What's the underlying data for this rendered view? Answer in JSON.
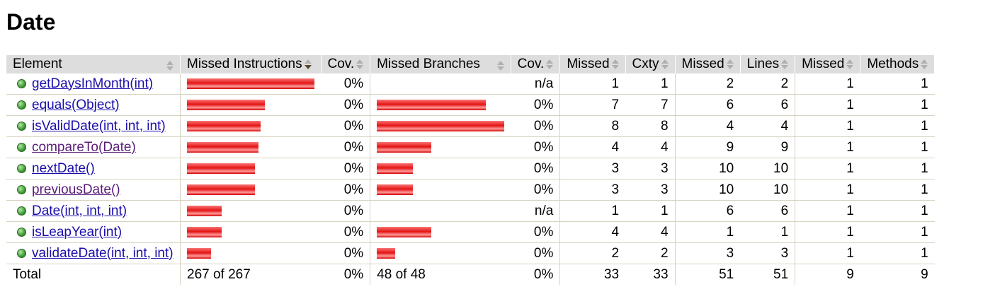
{
  "page_title": "Date",
  "columns": [
    "Element",
    "Missed Instructions",
    "Cov.",
    "Missed Branches",
    "Cov.",
    "Missed",
    "Cxty",
    "Missed",
    "Lines",
    "Missed",
    "Methods"
  ],
  "rows": [
    {
      "name": "getDaysInMonth(int)",
      "instr_fraction": 1.0,
      "instr_cov": "0%",
      "branch_fraction": 0,
      "branch_cov": "n/a",
      "missed_cxty": "1",
      "cxty": "1",
      "missed_lines": "2",
      "lines": "2",
      "missed_methods": "1",
      "methods": "1",
      "visited": false
    },
    {
      "name": "equals(Object)",
      "instr_fraction": 0.611,
      "instr_cov": "0%",
      "branch_fraction": 0.857,
      "branch_cov": "0%",
      "missed_cxty": "7",
      "cxty": "7",
      "missed_lines": "6",
      "lines": "6",
      "missed_methods": "1",
      "methods": "1",
      "visited": false
    },
    {
      "name": "isValidDate(int, int, int)",
      "instr_fraction": 0.578,
      "instr_cov": "0%",
      "branch_fraction": 1.0,
      "branch_cov": "0%",
      "missed_cxty": "8",
      "cxty": "8",
      "missed_lines": "4",
      "lines": "4",
      "missed_methods": "1",
      "methods": "1",
      "visited": false
    },
    {
      "name": "compareTo(Date)",
      "instr_fraction": 0.561,
      "instr_cov": "0%",
      "branch_fraction": 0.429,
      "branch_cov": "0%",
      "missed_cxty": "4",
      "cxty": "4",
      "missed_lines": "9",
      "lines": "9",
      "missed_methods": "1",
      "methods": "1",
      "visited": true
    },
    {
      "name": "nextDate()",
      "instr_fraction": 0.533,
      "instr_cov": "0%",
      "branch_fraction": 0.286,
      "branch_cov": "0%",
      "missed_cxty": "3",
      "cxty": "3",
      "missed_lines": "10",
      "lines": "10",
      "missed_methods": "1",
      "methods": "1",
      "visited": false
    },
    {
      "name": "previousDate()",
      "instr_fraction": 0.533,
      "instr_cov": "0%",
      "branch_fraction": 0.286,
      "branch_cov": "0%",
      "missed_cxty": "3",
      "cxty": "3",
      "missed_lines": "10",
      "lines": "10",
      "missed_methods": "1",
      "methods": "1",
      "visited": true
    },
    {
      "name": "Date(int, int, int)",
      "instr_fraction": 0.272,
      "instr_cov": "0%",
      "branch_fraction": 0,
      "branch_cov": "n/a",
      "missed_cxty": "1",
      "cxty": "1",
      "missed_lines": "6",
      "lines": "6",
      "missed_methods": "1",
      "methods": "1",
      "visited": false
    },
    {
      "name": "isLeapYear(int)",
      "instr_fraction": 0.272,
      "instr_cov": "0%",
      "branch_fraction": 0.429,
      "branch_cov": "0%",
      "missed_cxty": "4",
      "cxty": "4",
      "missed_lines": "1",
      "lines": "1",
      "missed_methods": "1",
      "methods": "1",
      "visited": false
    },
    {
      "name": "validateDate(int, int, int)",
      "instr_fraction": 0.189,
      "instr_cov": "0%",
      "branch_fraction": 0.143,
      "branch_cov": "0%",
      "missed_cxty": "2",
      "cxty": "2",
      "missed_lines": "3",
      "lines": "3",
      "missed_methods": "1",
      "methods": "1",
      "visited": false
    }
  ],
  "total": {
    "label": "Total",
    "instructions": "267 of 267",
    "instr_cov": "0%",
    "branches": "48 of 48",
    "branch_cov": "0%",
    "missed_cxty": "33",
    "cxty": "33",
    "missed_lines": "51",
    "lines": "51",
    "missed_methods": "9",
    "methods": "9"
  },
  "colors": {
    "bar": "#e41414",
    "header_bg": "#dddddd",
    "link": "#1a0dab",
    "visited_link": "#5a1c7a"
  },
  "icons": {
    "row_icon": "green-method-dot-icon",
    "sort_icon": "sort-arrows-icon"
  }
}
